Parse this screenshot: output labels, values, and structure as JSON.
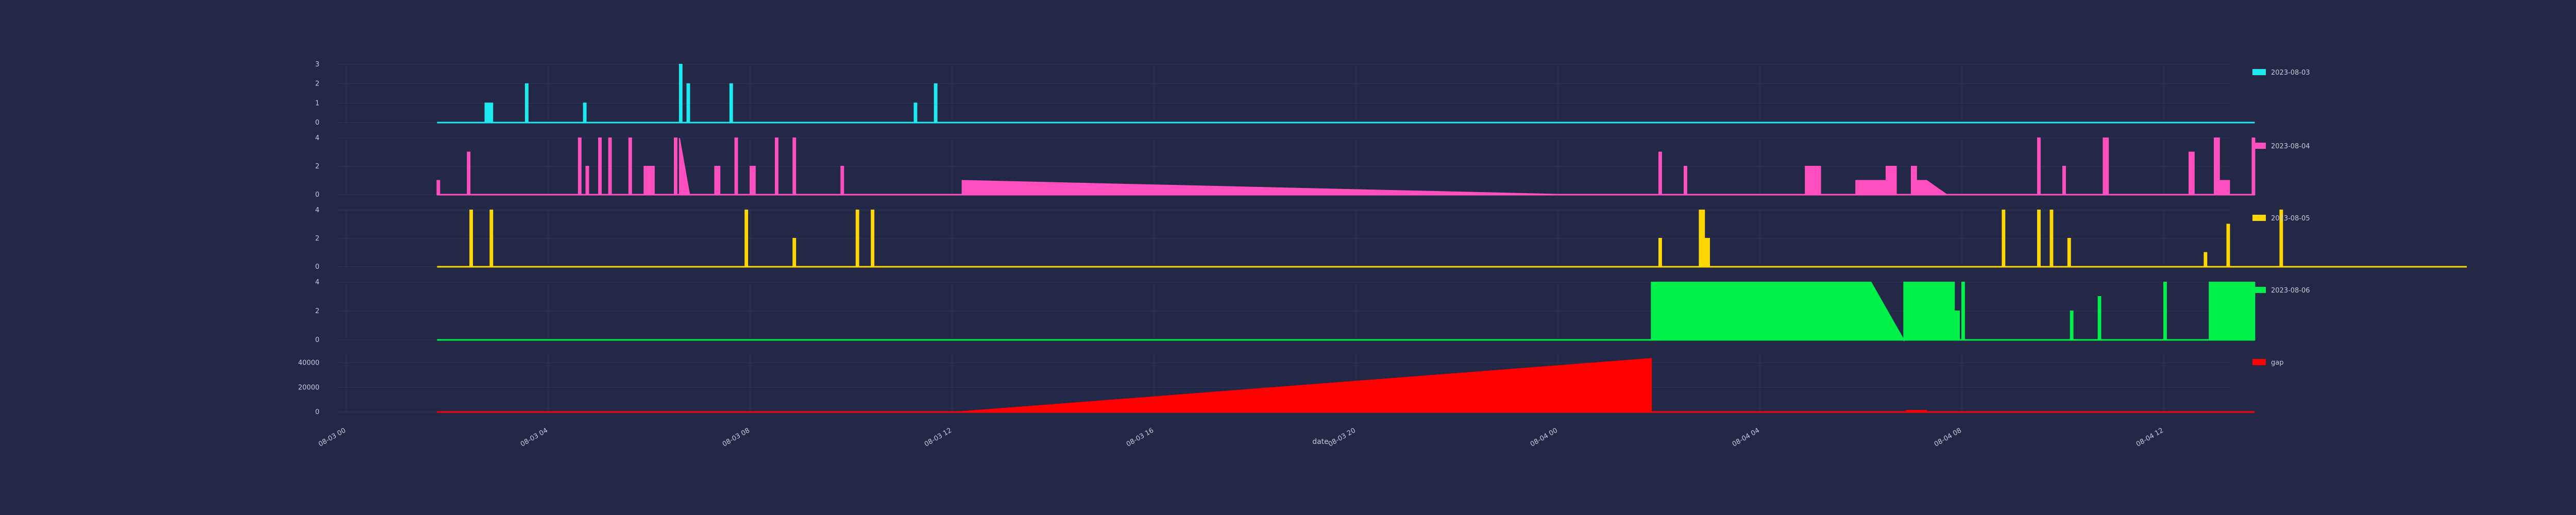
{
  "chart_data": {
    "type": "area",
    "layout": "stacked-subplots",
    "xlabel": "date",
    "x_range": [
      "2023-08-03 00:00",
      "2023-08-04 14:00"
    ],
    "x_ticks": [
      {
        "t": 0,
        "label": "08-03 00"
      },
      {
        "t": 4,
        "label": "08-03 04"
      },
      {
        "t": 8,
        "label": "08-03 08"
      },
      {
        "t": 12,
        "label": "08-03 12"
      },
      {
        "t": 16,
        "label": "08-03 16"
      },
      {
        "t": 20,
        "label": "08-03 20"
      },
      {
        "t": 24,
        "label": "08-04 00"
      },
      {
        "t": 28,
        "label": "08-04 04"
      },
      {
        "t": 32,
        "label": "08-04 08"
      },
      {
        "t": 36,
        "label": "08-04 12"
      }
    ],
    "x_hours_note": "point x values are hours after 2023-08-03 00:00",
    "grid": true,
    "legend_position": "right",
    "subplots": [
      {
        "name": "2023-08-03",
        "color": "#1ee8f0",
        "ylim": [
          0,
          3
        ],
        "yticks": [
          0,
          1,
          2,
          3
        ],
        "points": [
          [
            1.8,
            0
          ],
          [
            2.75,
            0
          ],
          [
            2.75,
            1
          ],
          [
            2.9,
            1
          ],
          [
            2.9,
            0
          ],
          [
            3.55,
            0
          ],
          [
            3.55,
            2
          ],
          [
            3.6,
            2
          ],
          [
            3.6,
            0
          ],
          [
            4.7,
            0
          ],
          [
            4.7,
            1
          ],
          [
            4.75,
            1
          ],
          [
            4.75,
            0
          ],
          [
            6.6,
            0
          ],
          [
            6.6,
            3
          ],
          [
            6.65,
            3
          ],
          [
            6.65,
            0
          ],
          [
            6.75,
            0
          ],
          [
            6.75,
            2
          ],
          [
            6.8,
            2
          ],
          [
            6.8,
            0
          ],
          [
            7.6,
            0
          ],
          [
            7.6,
            2
          ],
          [
            7.65,
            2
          ],
          [
            7.65,
            0
          ],
          [
            11.25,
            0
          ],
          [
            11.25,
            1
          ],
          [
            11.3,
            1
          ],
          [
            11.3,
            0
          ],
          [
            11.65,
            0
          ],
          [
            11.65,
            2
          ],
          [
            11.7,
            2
          ],
          [
            11.7,
            0
          ],
          [
            37.8,
            0
          ]
        ]
      },
      {
        "name": "2023-08-04",
        "color": "#ff4fbf",
        "ylim": [
          0,
          4
        ],
        "yticks": [
          0,
          2,
          4
        ],
        "points": [
          [
            1.8,
            0
          ],
          [
            1.8,
            1
          ],
          [
            1.85,
            1
          ],
          [
            1.85,
            0
          ],
          [
            2.4,
            0
          ],
          [
            2.4,
            3
          ],
          [
            2.45,
            3
          ],
          [
            2.45,
            0
          ],
          [
            4.6,
            0
          ],
          [
            4.6,
            4
          ],
          [
            4.65,
            4
          ],
          [
            4.65,
            0
          ],
          [
            4.75,
            0
          ],
          [
            4.75,
            2
          ],
          [
            4.8,
            2
          ],
          [
            4.8,
            0
          ],
          [
            5.0,
            0
          ],
          [
            5.0,
            4
          ],
          [
            5.05,
            4
          ],
          [
            5.05,
            0
          ],
          [
            5.2,
            0
          ],
          [
            5.2,
            4
          ],
          [
            5.25,
            4
          ],
          [
            5.25,
            0
          ],
          [
            5.6,
            0
          ],
          [
            5.6,
            4
          ],
          [
            5.65,
            4
          ],
          [
            5.65,
            0
          ],
          [
            5.9,
            0
          ],
          [
            5.9,
            2
          ],
          [
            6.1,
            2
          ],
          [
            6.1,
            0
          ],
          [
            6.5,
            0
          ],
          [
            6.5,
            4
          ],
          [
            6.55,
            4
          ],
          [
            6.55,
            0
          ],
          [
            6.6,
            0
          ],
          [
            6.6,
            4
          ],
          [
            6.8,
            0
          ],
          [
            7.3,
            0
          ],
          [
            7.3,
            2
          ],
          [
            7.4,
            2
          ],
          [
            7.4,
            0
          ],
          [
            7.7,
            0
          ],
          [
            7.7,
            4
          ],
          [
            7.75,
            4
          ],
          [
            7.75,
            0
          ],
          [
            8.0,
            0
          ],
          [
            8.0,
            2
          ],
          [
            8.1,
            2
          ],
          [
            8.1,
            0
          ],
          [
            8.5,
            0
          ],
          [
            8.5,
            4
          ],
          [
            8.55,
            4
          ],
          [
            8.55,
            0
          ],
          [
            8.85,
            0
          ],
          [
            8.85,
            4
          ],
          [
            8.9,
            4
          ],
          [
            8.9,
            0
          ],
          [
            9.8,
            0
          ],
          [
            9.8,
            2
          ],
          [
            9.85,
            2
          ],
          [
            9.85,
            0
          ],
          [
            12.2,
            0
          ],
          [
            12.2,
            1
          ],
          [
            24.2,
            0
          ],
          [
            26.0,
            0
          ],
          [
            26.0,
            3
          ],
          [
            26.05,
            3
          ],
          [
            26.05,
            0
          ],
          [
            26.5,
            0
          ],
          [
            26.5,
            2
          ],
          [
            26.55,
            2
          ],
          [
            26.55,
            0
          ],
          [
            26.0,
            0
          ],
          [
            28.9,
            0
          ],
          [
            28.9,
            2
          ],
          [
            29.2,
            2
          ],
          [
            29.2,
            0
          ],
          [
            29.9,
            0
          ],
          [
            29.9,
            1
          ],
          [
            30.5,
            1
          ],
          [
            30.5,
            2
          ],
          [
            30.7,
            2
          ],
          [
            30.7,
            0
          ],
          [
            31.0,
            0
          ],
          [
            31.0,
            2
          ],
          [
            31.1,
            2
          ],
          [
            31.1,
            1
          ],
          [
            31.3,
            1
          ],
          [
            31.7,
            0
          ],
          [
            33.5,
            0
          ],
          [
            33.5,
            4
          ],
          [
            33.55,
            4
          ],
          [
            33.55,
            0
          ],
          [
            34.0,
            0
          ],
          [
            34.0,
            2
          ],
          [
            34.05,
            2
          ],
          [
            34.05,
            0
          ],
          [
            34.8,
            0
          ],
          [
            34.8,
            4
          ],
          [
            34.9,
            4
          ],
          [
            34.9,
            0
          ],
          [
            36.5,
            0
          ],
          [
            36.5,
            3
          ],
          [
            36.6,
            3
          ],
          [
            36.6,
            0
          ],
          [
            37.0,
            0
          ],
          [
            37.0,
            4
          ],
          [
            37.1,
            4
          ],
          [
            37.1,
            1
          ],
          [
            37.3,
            1
          ],
          [
            37.3,
            0
          ],
          [
            37.75,
            0
          ],
          [
            37.75,
            4
          ],
          [
            37.8,
            4
          ],
          [
            37.8,
            0
          ]
        ]
      },
      {
        "name": "2023-08-05",
        "color": "#ffd700",
        "ylim": [
          0,
          4
        ],
        "yticks": [
          0,
          2,
          4
        ],
        "points": [
          [
            1.8,
            0
          ],
          [
            2.45,
            0
          ],
          [
            2.45,
            4
          ],
          [
            2.5,
            4
          ],
          [
            2.5,
            0
          ],
          [
            2.85,
            0
          ],
          [
            2.85,
            4
          ],
          [
            2.9,
            4
          ],
          [
            2.9,
            0
          ],
          [
            7.9,
            0
          ],
          [
            7.9,
            4
          ],
          [
            7.95,
            4
          ],
          [
            7.95,
            0
          ],
          [
            8.85,
            0
          ],
          [
            8.85,
            2
          ],
          [
            8.9,
            2
          ],
          [
            8.9,
            0
          ],
          [
            10.1,
            0
          ],
          [
            10.1,
            4
          ],
          [
            10.15,
            4
          ],
          [
            10.15,
            0
          ],
          [
            10.4,
            0
          ],
          [
            10.4,
            4
          ],
          [
            10.45,
            4
          ],
          [
            10.45,
            0
          ],
          [
            26.0,
            0
          ],
          [
            26.0,
            2
          ],
          [
            26.05,
            2
          ],
          [
            26.05,
            0
          ],
          [
            26.8,
            0
          ],
          [
            26.8,
            4
          ],
          [
            26.9,
            4
          ],
          [
            26.9,
            2
          ],
          [
            27.0,
            2
          ],
          [
            27.0,
            0
          ],
          [
            32.8,
            0
          ],
          [
            32.8,
            4
          ],
          [
            32.85,
            4
          ],
          [
            32.85,
            0
          ],
          [
            33.5,
            0
          ],
          [
            33.5,
            4
          ],
          [
            33.55,
            4
          ],
          [
            33.55,
            0
          ],
          [
            33.75,
            0
          ],
          [
            33.75,
            4
          ],
          [
            33.8,
            4
          ],
          [
            33.8,
            0
          ],
          [
            34.1,
            0
          ],
          [
            34.1,
            2
          ],
          [
            34.15,
            2
          ],
          [
            34.15,
            0
          ],
          [
            36.8,
            0
          ],
          [
            36.8,
            1
          ],
          [
            36.85,
            1
          ],
          [
            36.85,
            0
          ],
          [
            37.25,
            0
          ],
          [
            37.25,
            3
          ],
          [
            37.3,
            3
          ],
          [
            37.3,
            0
          ],
          [
            38.3,
            0
          ],
          [
            38.3,
            4
          ],
          [
            38.35,
            4
          ],
          [
            38.35,
            0
          ],
          [
            42.0,
            0
          ]
        ]
      },
      {
        "name": "2023-08-06",
        "color": "#00f04a",
        "ylim": [
          0,
          4
        ],
        "yticks": [
          0,
          2,
          4
        ],
        "points": [
          [
            1.8,
            0
          ],
          [
            25.85,
            0
          ],
          [
            25.85,
            4
          ],
          [
            26.4,
            4
          ],
          [
            26.4,
            0
          ],
          [
            26.4,
            4
          ],
          [
            30.2,
            4
          ],
          [
            30.85,
            0
          ],
          [
            30.85,
            4
          ],
          [
            31.85,
            4
          ],
          [
            31.85,
            2
          ],
          [
            31.95,
            2
          ],
          [
            31.95,
            0
          ],
          [
            32.0,
            0
          ],
          [
            32.0,
            4
          ],
          [
            32.05,
            4
          ],
          [
            32.05,
            0
          ],
          [
            34.15,
            0
          ],
          [
            34.15,
            2
          ],
          [
            34.2,
            2
          ],
          [
            34.2,
            0
          ],
          [
            34.7,
            0
          ],
          [
            34.7,
            3
          ],
          [
            34.75,
            3
          ],
          [
            34.75,
            0
          ],
          [
            36.0,
            0
          ],
          [
            36.0,
            4
          ],
          [
            36.05,
            4
          ],
          [
            36.05,
            0
          ],
          [
            36.9,
            0
          ],
          [
            36.9,
            4
          ],
          [
            37.8,
            4
          ],
          [
            37.8,
            0
          ]
        ]
      },
      {
        "name": "gap",
        "color": "#ff0000",
        "ylim": [
          0,
          47000
        ],
        "yticks": [
          0,
          20000,
          40000
        ],
        "points": [
          [
            1.8,
            0
          ],
          [
            12.1,
            0
          ],
          [
            25.85,
            43500
          ],
          [
            25.85,
            0
          ],
          [
            30.9,
            0
          ],
          [
            30.9,
            1200
          ],
          [
            31.3,
            1200
          ],
          [
            31.3,
            0
          ],
          [
            37.8,
            0
          ]
        ]
      }
    ]
  }
}
